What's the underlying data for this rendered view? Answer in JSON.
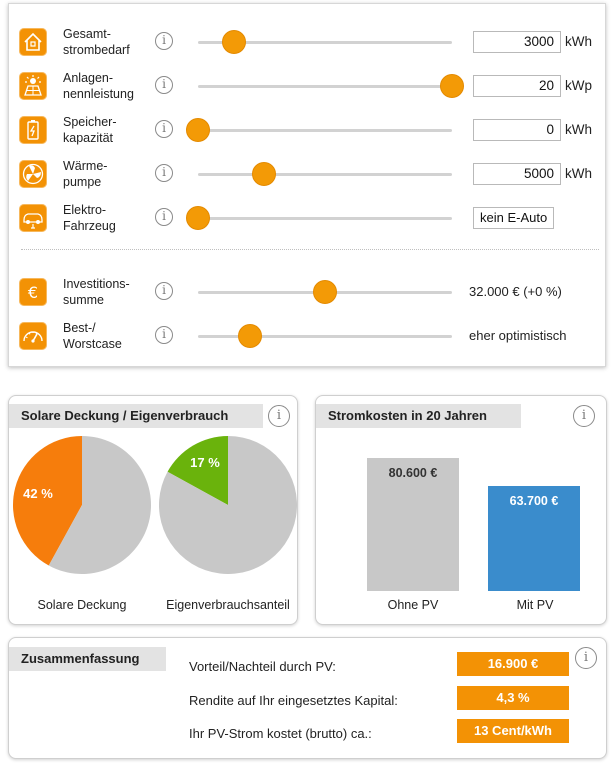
{
  "controls": [
    {
      "label": "Gesamt-\nstrombedarf",
      "icon": "house-icon",
      "value": "3000",
      "unit": "kWh",
      "slider": 0.14
    },
    {
      "label": "Anlagen-\nnennleistung",
      "icon": "solar-panel-icon",
      "value": "20",
      "unit": "kWp",
      "slider": 1.0
    },
    {
      "label": "Speicher-\nkapazität",
      "icon": "battery-icon",
      "value": "0",
      "unit": "kWh",
      "slider": 0.0
    },
    {
      "label": "Wärme-\npumpe",
      "icon": "fan-icon",
      "value": "5000",
      "unit": "kWh",
      "slider": 0.26
    },
    {
      "label": "Elektro-\nFahrzeug",
      "icon": "electric-car-icon",
      "select": "kein E-Auto",
      "slider": 0.0
    }
  ],
  "investment": {
    "label": "Investitions-\nsumme",
    "icon": "euro-icon",
    "value": "32.000 € (+0 %)",
    "slider": 0.5
  },
  "scenario": {
    "label": "Best-/\nWorstcase",
    "icon": "gauge-icon",
    "value": "eher optimistisch",
    "slider": 0.205
  },
  "coverage": {
    "title": "Solare Deckung / Eigenverbrauch",
    "solar_caption": "Solare Deckung",
    "self_caption": "Eigenverbrauchsanteil"
  },
  "costs": {
    "title": "Stromkosten in 20 Jahren",
    "without_caption": "Ohne PV",
    "with_caption": "Mit PV"
  },
  "summary": {
    "title": "Zusammenfassung",
    "rows": [
      {
        "label": "Vorteil/Nachteil durch PV:",
        "value": "16.900 €"
      },
      {
        "label": "Rendite auf Ihr eingesetztes Kapital:",
        "value": "4,3 %"
      },
      {
        "label": "Ihr PV-Strom kostet (brutto) ca.:",
        "value": "13 Cent/kWh"
      }
    ]
  },
  "colors": {
    "accent": "#f39205",
    "green": "#6ab30c",
    "blue": "#3a8ccc",
    "grey": "#c8c8c8"
  },
  "chart_data": [
    {
      "type": "pie",
      "name": "Solare Deckung",
      "slices": [
        {
          "label": "42 %",
          "value": 42,
          "color": "#f67d0c"
        },
        {
          "value": 58,
          "color": "#c8c8c8"
        }
      ]
    },
    {
      "type": "pie",
      "name": "Eigenverbrauchsanteil",
      "slices": [
        {
          "label": "17 %",
          "value": 17,
          "color": "#6ab30c"
        },
        {
          "value": 83,
          "color": "#c8c8c8"
        }
      ]
    },
    {
      "type": "bar",
      "categories": [
        "Ohne PV",
        "Mit PV"
      ],
      "values": [
        80600,
        63700
      ],
      "labels": [
        "80.600 €",
        "63.700 €"
      ],
      "colors": [
        "#c8c8c8",
        "#3a8ccc"
      ]
    }
  ]
}
